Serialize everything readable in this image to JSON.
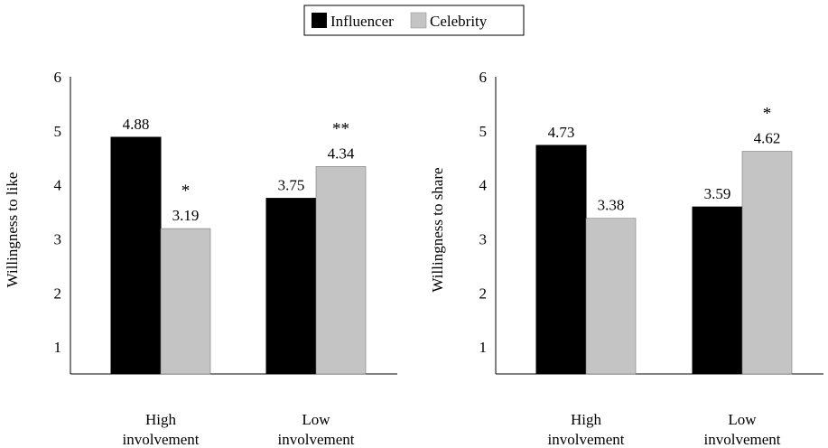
{
  "colors": {
    "influencer": "#000000",
    "celebrity": "#c4c4c4"
  },
  "legend": [
    {
      "name": "Influencer",
      "color": "#000000"
    },
    {
      "name": "Celebrity",
      "color": "#c4c4c4"
    }
  ],
  "chart_data": [
    {
      "type": "bar",
      "ylabel": "Willingness to like",
      "xlabel": "",
      "ylim": [
        0.5,
        6
      ],
      "yticks": [
        1,
        2,
        3,
        4,
        5,
        6
      ],
      "categories": [
        {
          "line1": "High",
          "line2": "involvement"
        },
        {
          "line1": "Low",
          "line2": "involvement"
        }
      ],
      "series": [
        {
          "name": "Influencer",
          "values": [
            4.88,
            3.75
          ],
          "labels": [
            "4.88",
            "3.75"
          ]
        },
        {
          "name": "Celebrity",
          "values": [
            3.19,
            4.34
          ],
          "labels": [
            "3.19",
            "4.34"
          ]
        }
      ],
      "significance": [
        "*",
        "**"
      ]
    },
    {
      "type": "bar",
      "ylabel": "Willingness to share",
      "xlabel": "",
      "ylim": [
        0.5,
        6
      ],
      "yticks": [
        1,
        2,
        3,
        4,
        5,
        6
      ],
      "categories": [
        {
          "line1": "High",
          "line2": "involvement"
        },
        {
          "line1": "Low",
          "line2": "involvement"
        }
      ],
      "series": [
        {
          "name": "Influencer",
          "values": [
            4.73,
            3.59
          ],
          "labels": [
            "4.73",
            "3.59"
          ]
        },
        {
          "name": "Celebrity",
          "values": [
            3.38,
            4.62
          ],
          "labels": [
            "3.38",
            "4.62"
          ]
        }
      ],
      "significance": [
        "",
        "*"
      ]
    }
  ]
}
